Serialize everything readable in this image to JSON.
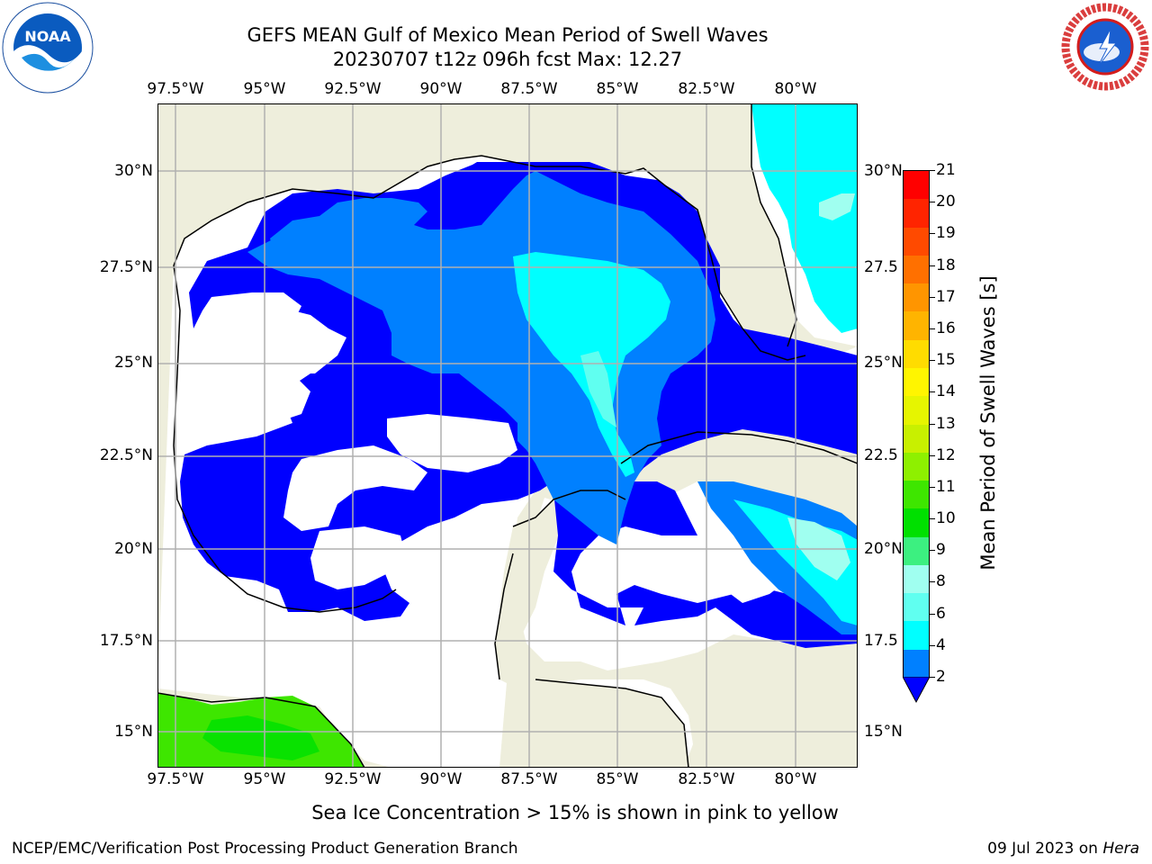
{
  "title": {
    "line1": "GEFS MEAN Gulf of Mexico Mean Period of Swell Waves",
    "line2": "20230707 t12z 096h fcst   Max: 12.27"
  },
  "logos": {
    "left": {
      "name": "noaa-logo",
      "text": "NOAA"
    },
    "right": {
      "name": "nws-logo",
      "text": "NATIONAL WEATHER SERVICE"
    }
  },
  "axes": {
    "lon_labels": [
      "97.5°W",
      "95°W",
      "92.5°W",
      "90°W",
      "87.5°W",
      "85°W",
      "82.5°W",
      "80°W"
    ],
    "lat_labels_left": [
      "30°N",
      "27.5°N",
      "25°N",
      "22.5°N",
      "20°N",
      "17.5°N",
      "15°N"
    ],
    "lat_labels_right": [
      "30°N",
      "27.5",
      "25°N",
      "22.5",
      "20°N",
      "17.5",
      "15°N"
    ]
  },
  "colorbar": {
    "label": "Mean Period of Swell Waves [s]",
    "ticks": [
      "21",
      "20",
      "19",
      "18",
      "17",
      "16",
      "15",
      "14",
      "13",
      "12",
      "11",
      "10",
      "9",
      "8",
      "6",
      "4",
      "2"
    ],
    "colors_top_to_bottom": [
      "#ff0000",
      "#ff2400",
      "#ff4a00",
      "#ff7000",
      "#ff9500",
      "#ffb400",
      "#ffdc00",
      "#fff500",
      "#e6f500",
      "#c8f000",
      "#8ef000",
      "#3ee600",
      "#00e000",
      "#3cf080",
      "#a0fff0",
      "#60fff0",
      "#00ffff",
      "#0080ff"
    ],
    "extend_color": "#0000ff"
  },
  "map": {
    "land_color": "#eeeedc",
    "ocean_nodata_color": "#ffffff",
    "grid_color": "#b0b0b0",
    "swell_colors": {
      "lt2": "#0000ff",
      "2_4": "#0080ff",
      "4_6": "#00ffff",
      "6_8": "#60fff0",
      "8_9": "#a0fff0",
      "10_11": "#00e000",
      "11_12": "#3ee600"
    }
  },
  "ice_note": "Sea Ice Concentration > 15% is shown in pink to yellow",
  "footer": {
    "left": "NCEP/EMC/Verification Post Processing Product Generation Branch",
    "date": "09 Jul 2023 on ",
    "machine": "Hera"
  }
}
